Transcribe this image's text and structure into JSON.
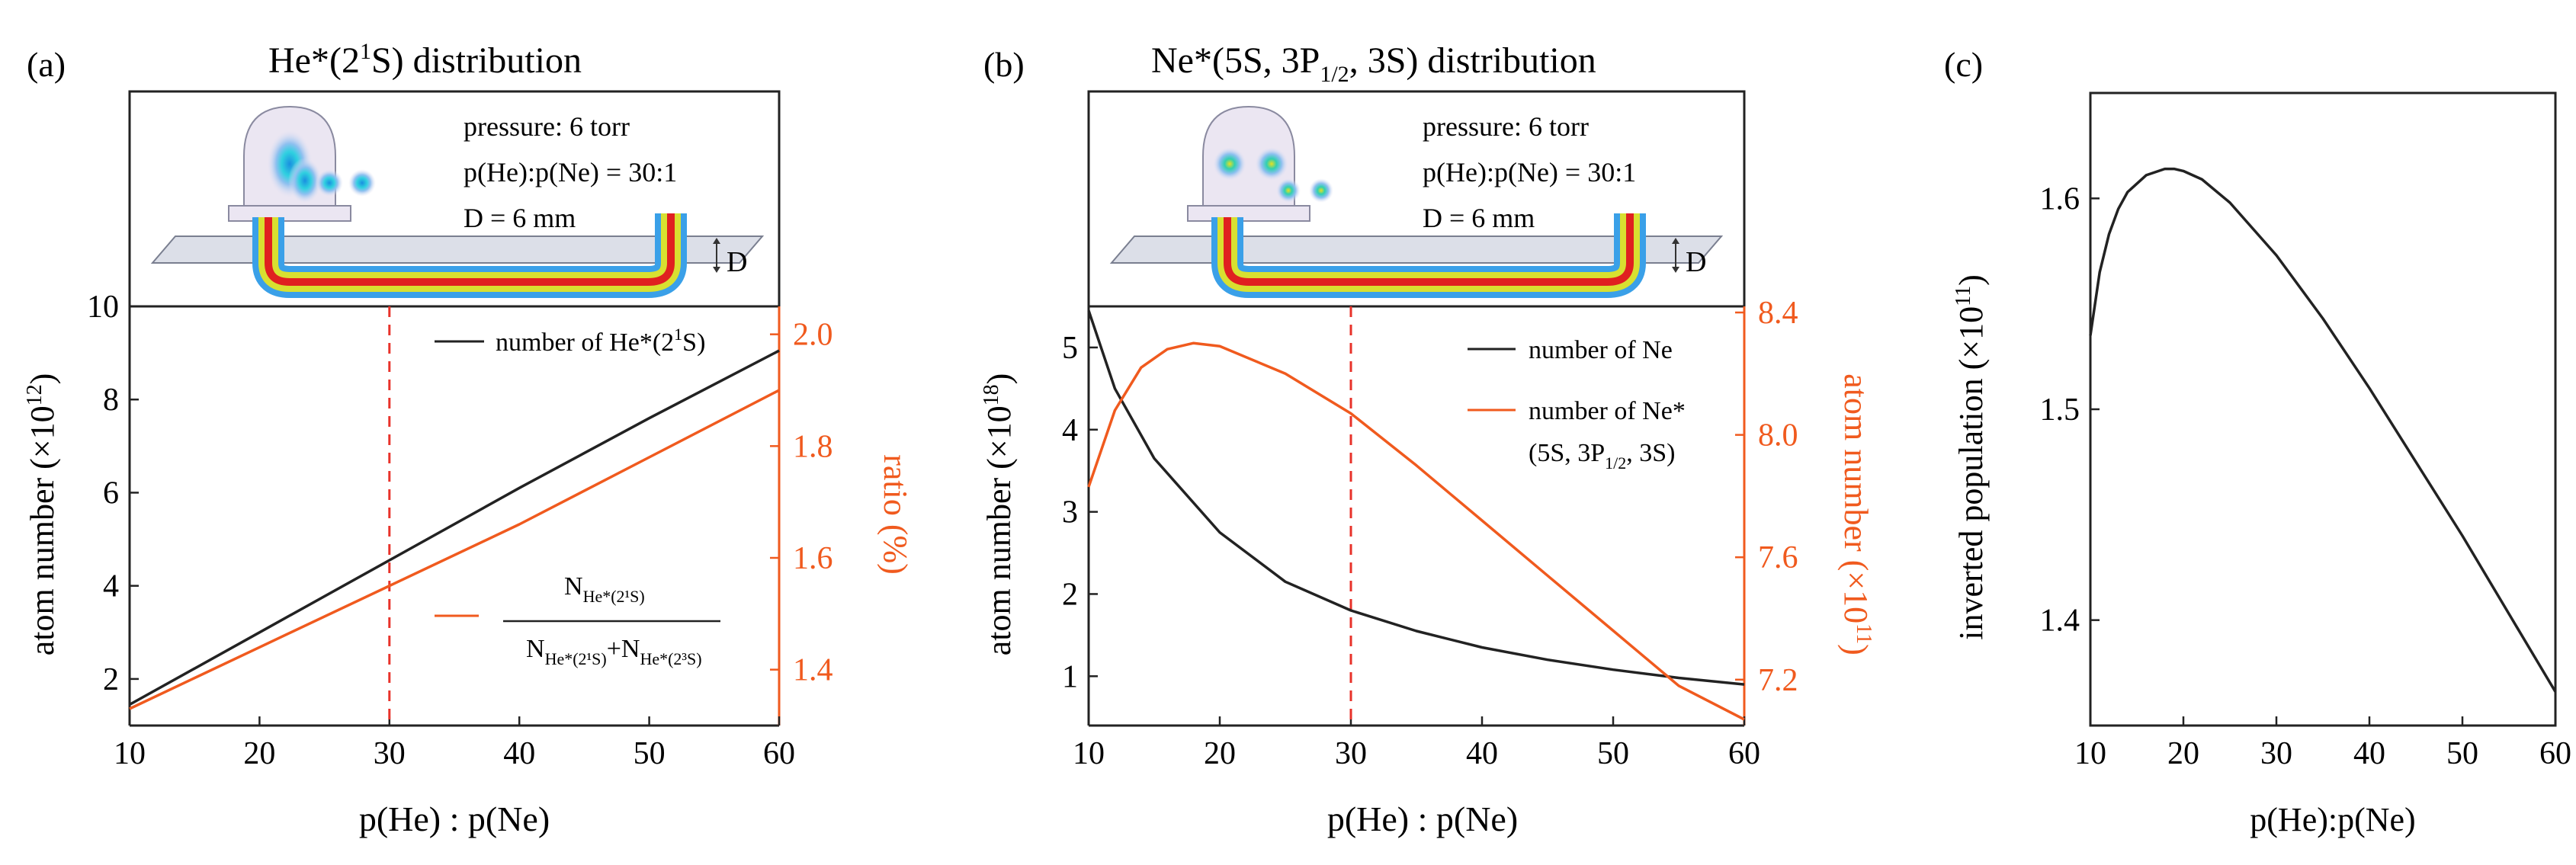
{
  "colors": {
    "black": "#222222",
    "orange": "#f05a1e",
    "red_dash": "#e8322a"
  },
  "panels": [
    {
      "label": "(a)",
      "title_parts": [
        "He*(2",
        "1",
        "S) distribution"
      ],
      "inset": {
        "lines": [
          "pressure: 6 torr",
          "p(He):p(Ne) = 30:1",
          "D = 6 mm"
        ],
        "d_label": "D"
      },
      "ylabel_left": "atom number (×10",
      "ylabel_left_exp": "12",
      "ylabel_left_close": ")",
      "ylabel_right": "ratio (%)",
      "legend": {
        "series1": "number of He*(2",
        "series1_sup": "1",
        "series1_end": "S)",
        "frac_num": "N",
        "frac_num_sub": "He*(2¹S)",
        "frac_den_a": "N",
        "frac_den_a_sub": "He*(2¹S)",
        "frac_den_plus": "+",
        "frac_den_b": "N",
        "frac_den_b_sub": "He*(2³S)"
      }
    },
    {
      "label": "(b)",
      "title_main": "Ne*(5S, 3P",
      "title_sub": "1/2",
      "title_end": ", 3S) distribution",
      "inset": {
        "lines": [
          "pressure: 6 torr",
          "p(He):p(Ne) = 30:1",
          "D = 6 mm"
        ],
        "d_label": "D"
      },
      "ylabel_left": "atom number (×10",
      "ylabel_left_exp": "18",
      "ylabel_left_close": ")",
      "ylabel_right": "atom number (×10",
      "ylabel_right_exp": "11",
      "ylabel_right_close": ")",
      "legend": {
        "series1": "number of Ne",
        "series2": "number of Ne*",
        "series2_line2_a": "(5S, 3P",
        "series2_line2_sub": "1/2",
        "series2_line2_b": ", 3S)"
      }
    },
    {
      "label": "(c)",
      "ylabel": "inverted population (×10",
      "ylabel_exp": "11",
      "ylabel_close": ")"
    }
  ],
  "xlabels": [
    "p(He) : p(Ne)",
    "p(He) : p(Ne)",
    "p(He):p(Ne)"
  ],
  "chart_data": [
    {
      "panel": "a",
      "type": "line",
      "x_label": "p(He) : p(Ne)",
      "xlim": [
        10,
        60
      ],
      "xticks": [
        10,
        20,
        30,
        40,
        50,
        60
      ],
      "y_left": {
        "lim": [
          1,
          10
        ],
        "ticks": [
          2,
          4,
          6,
          8,
          10
        ],
        "unit": "x10^12"
      },
      "y_right": {
        "lim": [
          1.3,
          2.05
        ],
        "ticks": [
          1.4,
          1.6,
          1.8,
          2.0
        ],
        "tick_labels": [
          "1.4",
          "1.6",
          "1.8",
          "2.0"
        ]
      },
      "marker_x": 30,
      "series": [
        {
          "name": "number of He*(2¹S)",
          "axis": "left",
          "color": "#222222",
          "x": [
            10,
            20,
            30,
            40,
            50,
            60
          ],
          "y": [
            1.45,
            3.0,
            4.55,
            6.1,
            7.6,
            9.05
          ]
        },
        {
          "name": "N_He*(2¹S)/(N_He*(2¹S)+N_He*(2³S))",
          "axis": "right",
          "color": "#f05a1e",
          "x": [
            10,
            20,
            30,
            40,
            50,
            60
          ],
          "y": [
            1.33,
            1.44,
            1.55,
            1.66,
            1.78,
            1.9
          ]
        }
      ]
    },
    {
      "panel": "b",
      "type": "line",
      "x_label": "p(He) : p(Ne)",
      "xlim": [
        10,
        60
      ],
      "xticks": [
        10,
        20,
        30,
        40,
        50,
        60
      ],
      "y_left": {
        "lim": [
          0.4,
          5.5
        ],
        "ticks": [
          1,
          2,
          3,
          4,
          5
        ],
        "unit": "x10^18"
      },
      "y_right": {
        "lim": [
          7.05,
          8.42
        ],
        "ticks": [
          7.2,
          7.6,
          8.0,
          8.4
        ],
        "tick_labels": [
          "7.2",
          "7.6",
          "8.0",
          "8.4"
        ],
        "unit": "x10^11"
      },
      "marker_x": 30,
      "series": [
        {
          "name": "number of Ne",
          "axis": "left",
          "color": "#222222",
          "x": [
            10,
            12,
            15,
            20,
            25,
            30,
            35,
            40,
            45,
            50,
            55,
            60
          ],
          "y": [
            5.45,
            4.5,
            3.65,
            2.75,
            2.15,
            1.8,
            1.55,
            1.35,
            1.2,
            1.08,
            0.98,
            0.9
          ]
        },
        {
          "name": "number of Ne* (5S, 3P1/2, 3S)",
          "axis": "right",
          "color": "#f05a1e",
          "x": [
            10,
            12,
            14,
            16,
            18,
            20,
            25,
            30,
            35,
            40,
            45,
            50,
            55,
            60
          ],
          "y": [
            7.83,
            8.08,
            8.22,
            8.28,
            8.3,
            8.29,
            8.2,
            8.07,
            7.9,
            7.72,
            7.54,
            7.36,
            7.18,
            7.07
          ]
        }
      ]
    },
    {
      "panel": "c",
      "type": "line",
      "x_label": "p(He):p(Ne)",
      "xlim": [
        10,
        60
      ],
      "xticks": [
        10,
        20,
        30,
        40,
        50,
        60
      ],
      "y_left": {
        "lim": [
          1.35,
          1.65
        ],
        "ticks": [
          1.4,
          1.5,
          1.6
        ],
        "tick_labels": [
          "1.4",
          "1.5",
          "1.6"
        ],
        "unit": "x10^11"
      },
      "series": [
        {
          "name": "inverted population",
          "axis": "left",
          "color": "#222222",
          "x": [
            10,
            11,
            12,
            13,
            14,
            16,
            18,
            19,
            20,
            22,
            25,
            30,
            35,
            40,
            45,
            50,
            55,
            60
          ],
          "y": [
            1.535,
            1.565,
            1.583,
            1.595,
            1.603,
            1.611,
            1.614,
            1.614,
            1.613,
            1.609,
            1.598,
            1.573,
            1.543,
            1.51,
            1.475,
            1.44,
            1.403,
            1.366
          ]
        }
      ]
    }
  ]
}
